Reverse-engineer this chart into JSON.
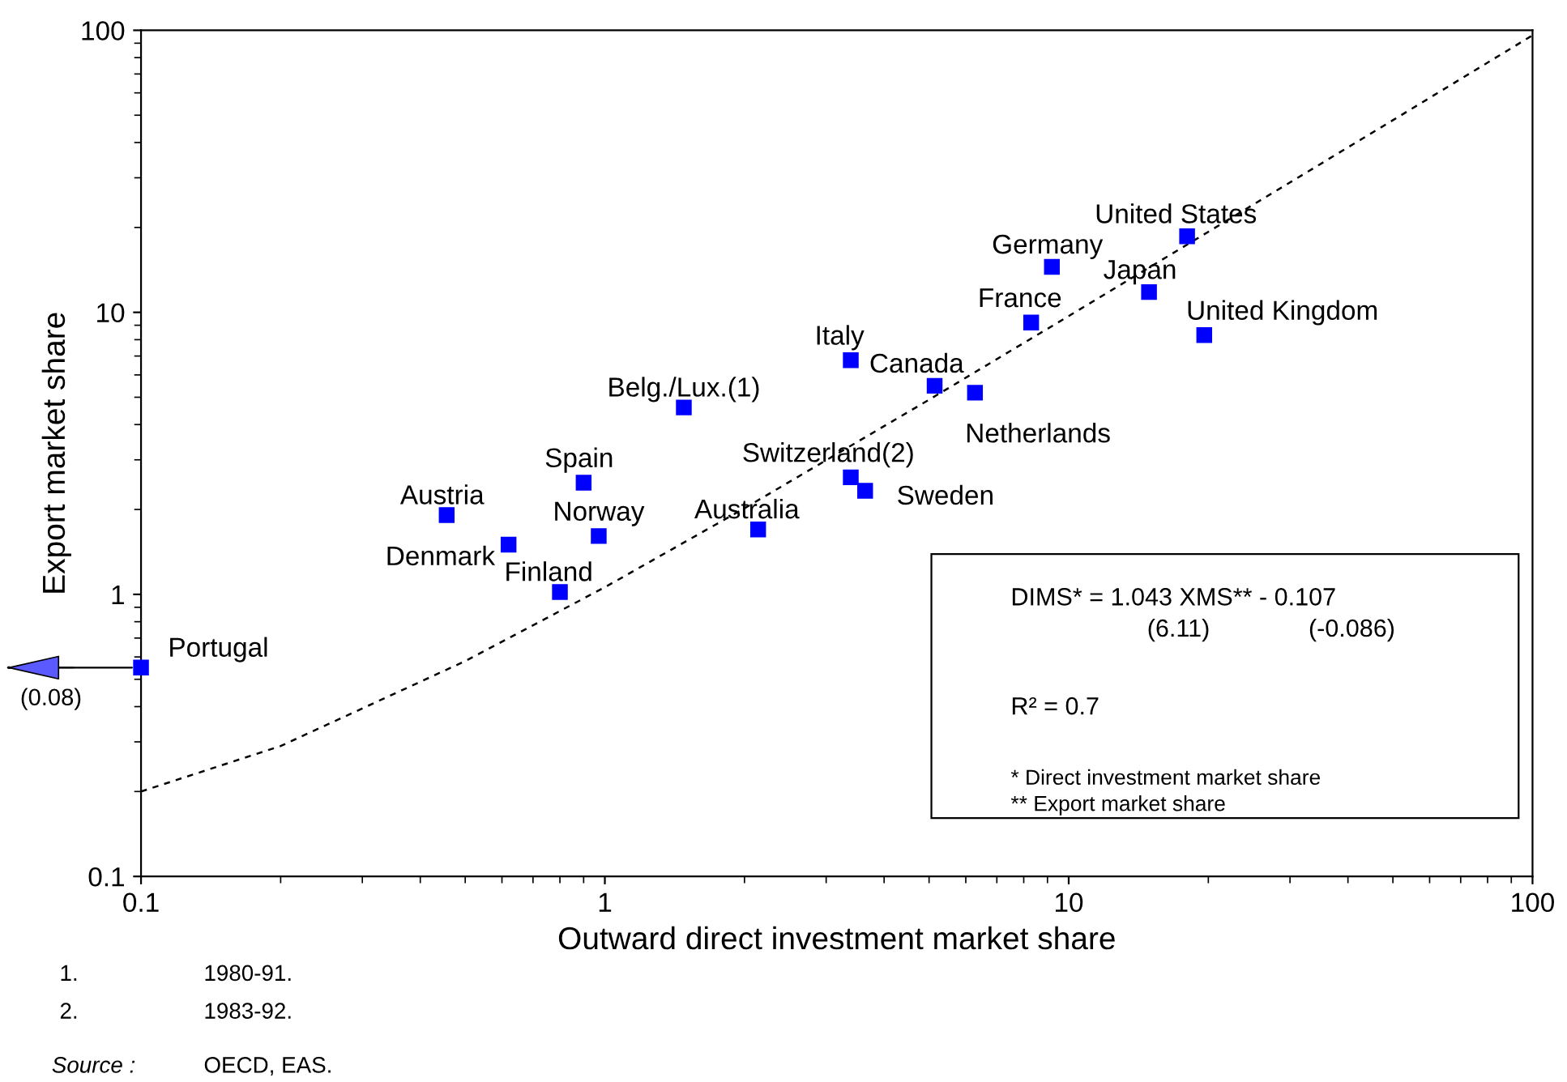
{
  "chart_data": {
    "type": "scatter",
    "xlabel": "Outward direct investment market share",
    "ylabel": "Export market share",
    "series": [
      {
        "color": "#0000ff",
        "marker": "square",
        "x": [
          0.1,
          0.456,
          0.62,
          0.9,
          0.97,
          0.8,
          1.48,
          2.14,
          3.39,
          5.14,
          6.28,
          3.39,
          3.64,
          8.3,
          9.2,
          14.9,
          18.0,
          19.6
        ],
        "values": [
          0.55,
          1.91,
          1.5,
          2.49,
          1.61,
          1.02,
          4.6,
          1.7,
          6.77,
          5.49,
          5.19,
          2.6,
          2.33,
          9.2,
          14.5,
          11.8,
          18.6,
          8.3
        ]
      },
      {
        "type": "line",
        "color": "#000000",
        "line_style": "dashed",
        "marker": "none",
        "x": [
          0.1,
          0.2,
          0.5,
          1,
          2,
          5,
          10,
          20,
          50,
          100
        ],
        "values": [
          0.2,
          0.29,
          0.58,
          1.06,
          2.02,
          4.9,
          9.7,
          19.3,
          48,
          96
        ]
      }
    ],
    "annotations": [
      {
        "text": "Portugal",
        "x": 0.1,
        "y": 0.55
      },
      {
        "text": "Austria",
        "x": 0.456,
        "y": 1.91
      },
      {
        "text": "Denmark",
        "x": 0.62,
        "y": 1.5
      },
      {
        "text": "Spain",
        "x": 0.9,
        "y": 2.49
      },
      {
        "text": "Norway",
        "x": 0.97,
        "y": 1.61
      },
      {
        "text": "Finland",
        "x": 0.8,
        "y": 1.02
      },
      {
        "text": "Belg./Lux.(1)",
        "x": 1.48,
        "y": 4.6
      },
      {
        "text": "Australia",
        "x": 2.14,
        "y": 1.7
      },
      {
        "text": "Italy",
        "x": 3.39,
        "y": 6.77
      },
      {
        "text": "Canada",
        "x": 5.14,
        "y": 5.49
      },
      {
        "text": "Netherlands",
        "x": 6.28,
        "y": 5.19
      },
      {
        "text": "Switzerland(2)",
        "x": 3.39,
        "y": 2.6
      },
      {
        "text": "Sweden",
        "x": 3.64,
        "y": 2.33
      },
      {
        "text": "France",
        "x": 8.3,
        "y": 9.2
      },
      {
        "text": "Germany",
        "x": 9.2,
        "y": 14.5
      },
      {
        "text": "Japan",
        "x": 14.9,
        "y": 11.8
      },
      {
        "text": "United States",
        "x": 18.0,
        "y": 18.6
      },
      {
        "text": "United Kingdom",
        "x": 19.6,
        "y": 8.3
      },
      {
        "text": "(0.08)",
        "x": 0.1,
        "y": 0.55
      },
      "DIMS* = 1.043 XMS** - 0.107",
      "(6.11)",
      "(-0.086)",
      "R² = 0.7",
      "* Direct investment market share",
      "** Export market share",
      "1.",
      "1980-91.",
      "2.",
      "1983-92.",
      "Source :",
      "OECD, EAS."
    ],
    "log": "xy",
    "xlim": [
      0.1,
      100
    ],
    "ylim": [
      0.1,
      100
    ],
    "xticks": [
      0.1,
      1,
      10,
      100
    ],
    "yticks": [
      0.1,
      1,
      10,
      100
    ],
    "grid": false,
    "legend": false
  }
}
